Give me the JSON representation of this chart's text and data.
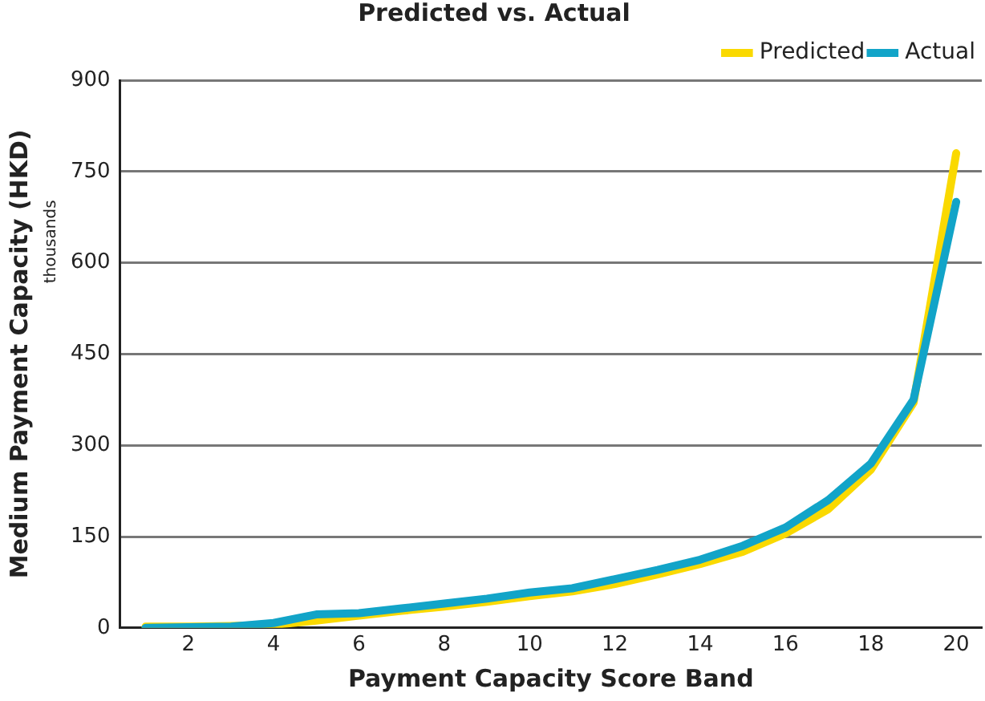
{
  "chart_data": {
    "type": "line",
    "title": "Predicted vs. Actual",
    "xlabel": "Payment Capacity Score Band",
    "ylabel": "Medium Payment Capacity (HKD)",
    "annotations": [
      "thousands"
    ],
    "x": [
      1,
      2,
      3,
      4,
      5,
      6,
      7,
      8,
      9,
      10,
      11,
      12,
      13,
      14,
      15,
      16,
      17,
      18,
      19,
      20
    ],
    "series": [
      {
        "name": "Actual",
        "color": "#12a4c8",
        "values": [
          0,
          1,
          2,
          8,
          22,
          24,
          32,
          40,
          48,
          58,
          65,
          80,
          95,
          112,
          135,
          165,
          210,
          270,
          375,
          700
        ]
      },
      {
        "name": "Predicted",
        "color": "#fad900",
        "values": [
          2,
          2,
          3,
          5,
          12,
          20,
          28,
          35,
          43,
          52,
          60,
          72,
          88,
          105,
          125,
          155,
          195,
          260,
          370,
          780
        ]
      }
    ],
    "xlim": [
      0.4,
      20.6
    ],
    "xticks": [
      2,
      4,
      6,
      8,
      10,
      12,
      14,
      16,
      18,
      20
    ],
    "ylim": [
      0,
      900
    ],
    "yticks": [
      0,
      150,
      300,
      450,
      600,
      750,
      900
    ],
    "grid": "y",
    "legend": "top right",
    "marker": "none",
    "line_style": "solid"
  }
}
